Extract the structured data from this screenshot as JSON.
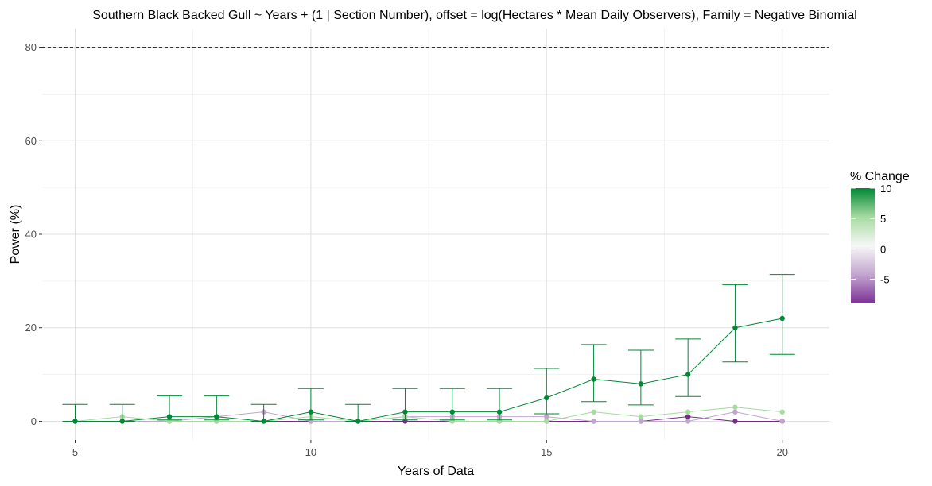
{
  "chart_data": {
    "type": "line",
    "title": "Southern Black Backed Gull ~ Years + (1 | Section Number), offset = log(Hectares * Mean Daily Observers), Family = Negative Binomial",
    "xlabel": "Years of Data",
    "ylabel": "Power (%)",
    "xlim": [
      4.3,
      21.0
    ],
    "ylim": [
      -4.0,
      84.0
    ],
    "x_ticks": [
      5,
      10,
      15,
      20
    ],
    "y_ticks": [
      0,
      20,
      40,
      60,
      80
    ],
    "reference_line": {
      "y": 80,
      "style": "dashed"
    },
    "grid": true,
    "legend": {
      "title": "% Change",
      "position": "right",
      "type": "colorbar",
      "range": [
        -9,
        10
      ],
      "ticks": [
        10,
        5,
        0,
        -5
      ],
      "colors": [
        "#7b3294",
        "#c2a5cf",
        "#f7f7f7",
        "#a6dba0",
        "#008837"
      ]
    },
    "series": [
      {
        "pct_change": -9,
        "color": "#762a83",
        "x": [
          5,
          6,
          7,
          8,
          9,
          10,
          11,
          12,
          13,
          14,
          15,
          16,
          17,
          18,
          19,
          20
        ],
        "y": [
          0,
          0,
          0,
          0,
          0,
          0,
          0,
          0,
          0,
          0,
          0,
          0,
          0,
          1,
          0,
          0
        ]
      },
      {
        "pct_change": -5,
        "color": "#c2a5cf",
        "x": [
          5,
          6,
          7,
          8,
          9,
          10,
          11,
          12,
          13,
          14,
          15,
          16,
          17,
          18,
          19,
          20
        ],
        "y": [
          0,
          0,
          0,
          1,
          2,
          0,
          0,
          1,
          1,
          1,
          1,
          0,
          0,
          0,
          2,
          0
        ]
      },
      {
        "pct_change": 5,
        "color": "#a6dba0",
        "x": [
          5,
          6,
          7,
          8,
          9,
          10,
          11,
          12,
          13,
          14,
          15,
          16,
          17,
          18,
          19,
          20
        ],
        "y": [
          0,
          1,
          0,
          0,
          0,
          1,
          0,
          1,
          0,
          0,
          0,
          2,
          1,
          2,
          3,
          2
        ]
      },
      {
        "pct_change": 10,
        "color": "#008837",
        "x": [
          5,
          6,
          7,
          8,
          9,
          10,
          11,
          12,
          13,
          14,
          15,
          16,
          17,
          18,
          19,
          20
        ],
        "y": [
          0,
          0,
          1,
          1,
          0,
          2,
          0,
          2,
          2,
          2,
          5,
          9,
          8,
          10,
          20,
          22
        ],
        "err_low": [
          0,
          0,
          0.3,
          0.3,
          0,
          0.3,
          0,
          0.3,
          0.3,
          0.3,
          1.6,
          4.2,
          3.5,
          5.3,
          12.7,
          14.3
        ],
        "err_high": [
          3.6,
          3.6,
          5.4,
          5.4,
          3.6,
          7.0,
          3.6,
          7.0,
          7.0,
          7.0,
          11.3,
          16.4,
          15.2,
          17.6,
          29.2,
          31.4
        ]
      }
    ]
  }
}
